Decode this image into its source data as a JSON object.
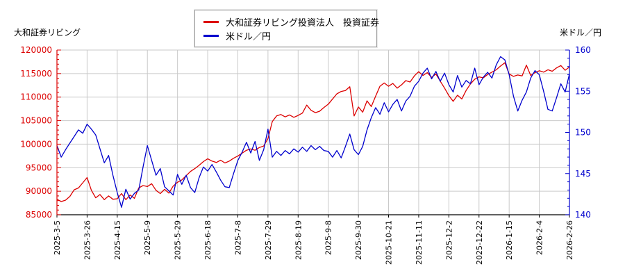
{
  "titles": {
    "left_axis_title": "大和証券リビング",
    "right_axis_title": "米ドル／円"
  },
  "legend": {
    "items": [
      {
        "label": "大和証券リビング投資法人　投資証券",
        "color": "#dc0000"
      },
      {
        "label": "米ドル／円",
        "color": "#0000cd"
      }
    ]
  },
  "chart_data": {
    "type": "line",
    "grid": true,
    "background": "#ffffff",
    "grid_color": "#c9c9c9",
    "x_axis_color": "#000000",
    "x_ticks": [
      "2025-3-5",
      "2025-3-26",
      "2025-4-15",
      "2025-5-9",
      "2025-5-29",
      "2025-6-18",
      "2025-7-8",
      "2025-7-29",
      "2025-8-19",
      "2025-9-8",
      "2025-9-30",
      "2025-10-21",
      "2025-11-11",
      "2025-12-2",
      "2025-12-22",
      "2026-1-15",
      "2026-2-4",
      "2026-2-26"
    ],
    "left_axis": {
      "title": "大和証券リビング",
      "min": 85000,
      "max": 120000,
      "tick_step": 5000,
      "minor_step": 1000,
      "tick_labels": [
        "85000",
        "90000",
        "95000",
        "100000",
        "105000",
        "110000",
        "115000",
        "120000"
      ],
      "color": "#dc0000"
    },
    "right_axis": {
      "title": "米ドル／円",
      "min": 140,
      "max": 160,
      "tick_step": 5,
      "minor_step": 1,
      "tick_labels": [
        "140",
        "145",
        "150",
        "155",
        "160"
      ],
      "color": "#0000cd"
    },
    "series": [
      {
        "name": "大和証券リビング投資法人　投資証券",
        "axis": "left",
        "color": "#dc0000",
        "values": [
          88300,
          87800,
          88100,
          88900,
          90300,
          90700,
          91800,
          92900,
          90200,
          88600,
          89300,
          88200,
          89000,
          88300,
          88400,
          89500,
          88200,
          89200,
          88500,
          90700,
          91200,
          91000,
          91600,
          90200,
          89500,
          90400,
          89600,
          91100,
          91900,
          92400,
          93300,
          94200,
          94800,
          95500,
          96300,
          96900,
          96400,
          96100,
          96600,
          96000,
          96400,
          97000,
          97500,
          98100,
          98700,
          99000,
          98700,
          99300,
          99600,
          101200,
          104800,
          106000,
          106300,
          105800,
          106200,
          105700,
          106100,
          106600,
          108300,
          107200,
          106700,
          107000,
          107800,
          108500,
          109600,
          110700,
          111200,
          111400,
          112200,
          106000,
          107900,
          106800,
          109200,
          108000,
          110200,
          112300,
          113000,
          112300,
          112900,
          111900,
          112600,
          113500,
          113200,
          114500,
          115400,
          114600,
          115200,
          114200,
          114900,
          113400,
          111900,
          110300,
          109100,
          110400,
          109600,
          111400,
          112800,
          113800,
          114300,
          114100,
          114800,
          115300,
          115800,
          116600,
          117300,
          114900,
          114400,
          114700,
          114500,
          116800,
          114600,
          115200,
          115600,
          115300,
          115800,
          115500,
          116200,
          116700,
          115700,
          116400
        ]
      },
      {
        "name": "米ドル／円",
        "axis": "right",
        "color": "#0000cd",
        "values": [
          148.4,
          147.0,
          147.9,
          148.7,
          149.5,
          150.3,
          149.9,
          151.0,
          150.4,
          149.7,
          148.0,
          146.3,
          147.2,
          144.8,
          142.7,
          140.9,
          143.1,
          141.9,
          142.6,
          143.0,
          145.8,
          148.4,
          146.6,
          144.8,
          145.6,
          143.4,
          142.9,
          142.4,
          144.9,
          143.7,
          144.8,
          143.3,
          142.7,
          144.5,
          145.8,
          145.3,
          146.1,
          145.2,
          144.2,
          143.4,
          143.3,
          145.0,
          146.6,
          147.6,
          148.8,
          147.5,
          148.9,
          146.6,
          147.9,
          150.4,
          147.0,
          147.7,
          147.2,
          147.8,
          147.4,
          148.0,
          147.6,
          148.2,
          147.7,
          148.4,
          147.9,
          148.3,
          147.8,
          147.7,
          147.0,
          147.8,
          146.9,
          148.3,
          149.8,
          147.9,
          147.3,
          148.3,
          150.3,
          151.8,
          153.0,
          152.2,
          153.6,
          152.5,
          153.4,
          154.0,
          152.6,
          153.8,
          154.4,
          155.6,
          156.2,
          157.2,
          157.8,
          156.5,
          157.4,
          156.2,
          157.2,
          155.8,
          154.9,
          156.9,
          155.5,
          156.3,
          155.9,
          157.8,
          155.8,
          156.7,
          157.3,
          156.6,
          158.2,
          159.2,
          158.8,
          157.0,
          154.4,
          152.6,
          153.9,
          154.9,
          156.6,
          157.5,
          157.0,
          155.0,
          152.8,
          152.6,
          154.2,
          155.9,
          154.9,
          157.1
        ]
      }
    ]
  }
}
